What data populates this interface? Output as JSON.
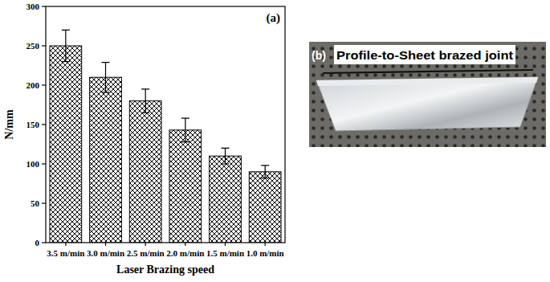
{
  "chart_data": {
    "type": "bar",
    "annotations": [
      "(a)"
    ],
    "x_label": "Laser Brazing speed",
    "y_label": "N/mm",
    "categories": [
      "3.5 m/min",
      "3.0 m/min",
      "2.5 m/min",
      "2.0 m/min",
      "1.5 m/min",
      "1.0 m/min"
    ],
    "values": [
      250,
      210,
      180,
      143,
      110,
      90
    ],
    "errors": [
      20,
      19,
      15,
      15,
      10,
      8
    ],
    "color": "#000000",
    "ylim": [
      0,
      300
    ],
    "yticks": [
      0,
      50,
      100,
      150,
      200,
      250,
      300
    ],
    "grid": false
  },
  "image_panel": {
    "label": "(b)",
    "caption": "Profile-to-Sheet brazed joint"
  }
}
